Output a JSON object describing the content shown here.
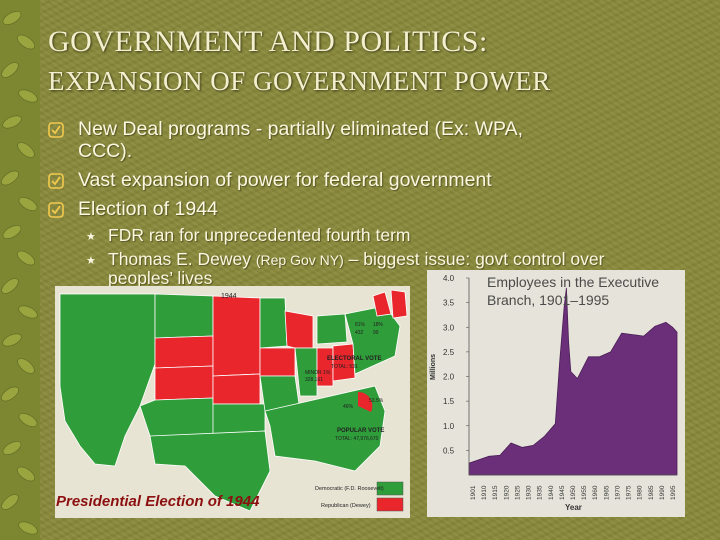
{
  "title_line1": "GOVERNMENT AND POLITICS:",
  "title_line2": "EXPANSION OF GOVERNMENT POWER",
  "bullets": [
    {
      "line1": "New Deal programs - partially eliminated (Ex: WPA,",
      "line2": "CCC)."
    },
    {
      "line1": "Vast expansion of power for federal government"
    },
    {
      "line1": "Election of 1944"
    }
  ],
  "sub_bullets": [
    {
      "text": "FDR ran for unprecedented fourth term"
    },
    {
      "text_a": "Thomas E. Dewey ",
      "text_small": "(Rep Gov NY)",
      "text_b": " – biggest issue: govt control over",
      "line2": "peoples’ lives"
    }
  ],
  "map": {
    "year_label": "1944",
    "caption": "Presidential Election of 1944",
    "electoral_label": "ELECTORAL VOTE",
    "electoral_total": "TOTAL: 531",
    "popular_label": "POPULAR VOTE",
    "popular_total": "TOTAL: 47,976,670",
    "pct_dem_ev": "81%",
    "pct_dem_ev_num": "432",
    "pct_rep_ev": "18%",
    "pct_rep_ev_num": "99",
    "pct_dem_pv": "53.5%",
    "pct_rep_pv": "46%",
    "minor_label": "MINOR 1%",
    "minor_num": "328,161",
    "legend_dem": "Democratic (F.D. Roosevelt)",
    "legend_rep": "Republican (Dewey)",
    "colors": {
      "democratic": "#2f9d3a",
      "republican": "#e8262b",
      "ocean": "#e8e4d4"
    }
  },
  "chart_data": {
    "type": "area",
    "title": "Employees in the Executive Branch, 1901–1995",
    "ylabel": "Millions",
    "xlabel": "Year",
    "ylim": [
      0,
      4.0
    ],
    "yticks": [
      "4.0",
      "3.5",
      "3.0",
      "2.5",
      "2.0",
      "1.5",
      "1.0",
      "0.5"
    ],
    "xticks": [
      "1901",
      "1910",
      "1915",
      "1920",
      "1925",
      "1930",
      "1935",
      "1940",
      "1945",
      "1950",
      "1955",
      "1960",
      "1965",
      "1970",
      "1975",
      "1980",
      "1985",
      "1990",
      "1995"
    ],
    "x": [
      1901,
      1910,
      1915,
      1920,
      1925,
      1930,
      1935,
      1940,
      1942,
      1944,
      1945,
      1946,
      1947,
      1950,
      1955,
      1960,
      1965,
      1970,
      1975,
      1980,
      1985,
      1990,
      1993,
      1995
    ],
    "y": [
      0.24,
      0.38,
      0.4,
      0.65,
      0.56,
      0.6,
      0.78,
      1.04,
      2.3,
      3.4,
      3.8,
      2.7,
      2.1,
      1.96,
      2.4,
      2.4,
      2.5,
      2.88,
      2.85,
      2.82,
      3.02,
      3.1,
      3.0,
      2.9
    ],
    "color": "#6b2f7a"
  },
  "bullet_color": "#f3ca4e"
}
